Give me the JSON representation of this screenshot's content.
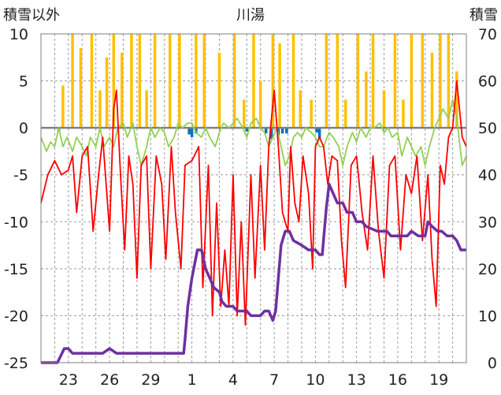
{
  "chart_data": {
    "type": "line",
    "title": "川湯",
    "left_axis_label": "積雪以外",
    "right_axis_label": "積雪",
    "left_ylim": [
      -25,
      10
    ],
    "left_yticks": [
      10,
      5,
      0,
      -5,
      -10,
      -15,
      -20,
      -25
    ],
    "right_ylim": [
      0,
      70
    ],
    "right_yticks": [
      70,
      60,
      50,
      40,
      30,
      20,
      10,
      0
    ],
    "x_range": [
      21,
      52
    ],
    "x_ticks": [
      {
        "x": 23,
        "label": "23"
      },
      {
        "x": 26,
        "label": "26"
      },
      {
        "x": 29,
        "label": "29"
      },
      {
        "x": 32,
        "label": "1"
      },
      {
        "x": 35,
        "label": "4"
      },
      {
        "x": 38,
        "label": "7"
      },
      {
        "x": 41,
        "label": "10"
      },
      {
        "x": 44,
        "label": "13"
      },
      {
        "x": 47,
        "label": "16"
      },
      {
        "x": 50,
        "label": "19"
      }
    ],
    "grid": "dashed-vertical-and-horizontal",
    "colors": {
      "precipitation": "#ffc000",
      "snowfall": "#0070c0",
      "temperature": "#ff0000",
      "sunshine": "#92d050",
      "snow_depth": "#7030a0",
      "zero_line": "#808080"
    },
    "series": [
      {
        "name": "precipitation",
        "kind": "bar-up-from-zero-left-axis",
        "values": [
          [
            22.6,
            4.5
          ],
          [
            23.3,
            10
          ],
          [
            23.9,
            8.5
          ],
          [
            24.7,
            10
          ],
          [
            25.3,
            4
          ],
          [
            25.8,
            7.5
          ],
          [
            26.3,
            10
          ],
          [
            26.9,
            8
          ],
          [
            27.6,
            10
          ],
          [
            28.2,
            10
          ],
          [
            28.7,
            4
          ],
          [
            29.3,
            10
          ],
          [
            30.4,
            10
          ],
          [
            31.1,
            10
          ],
          [
            32.3,
            10
          ],
          [
            32.9,
            10
          ],
          [
            34.0,
            8
          ],
          [
            35.1,
            10
          ],
          [
            35.8,
            3
          ],
          [
            36.5,
            10
          ],
          [
            37.0,
            5
          ],
          [
            37.9,
            10
          ],
          [
            38.4,
            9
          ],
          [
            39.4,
            10
          ],
          [
            39.9,
            4
          ],
          [
            40.7,
            3
          ],
          [
            41.8,
            10
          ],
          [
            42.6,
            10
          ],
          [
            43.2,
            3
          ],
          [
            44.1,
            10
          ],
          [
            44.7,
            6
          ],
          [
            45.2,
            10
          ],
          [
            46.0,
            4
          ],
          [
            46.8,
            10
          ],
          [
            47.4,
            3
          ],
          [
            48.0,
            10
          ],
          [
            48.8,
            10
          ],
          [
            49.5,
            8
          ],
          [
            50.1,
            10
          ],
          [
            50.7,
            10
          ],
          [
            51.3,
            6
          ]
        ]
      },
      {
        "name": "snowfall",
        "kind": "bar-down-from-zero-left-axis",
        "values": [
          [
            22.3,
            -0.4
          ],
          [
            31.8,
            -0.7
          ],
          [
            32.0,
            -1
          ],
          [
            32.3,
            -0.6
          ],
          [
            36.0,
            -0.4
          ],
          [
            37.4,
            -0.6
          ],
          [
            37.8,
            -1.2
          ],
          [
            38.3,
            -0.8
          ],
          [
            38.6,
            -0.6
          ],
          [
            38.9,
            -0.6
          ],
          [
            41.1,
            -0.5
          ],
          [
            41.3,
            -1.2
          ]
        ]
      },
      {
        "name": "temperature",
        "kind": "line-left-axis",
        "values": [
          [
            21.0,
            -8
          ],
          [
            21.5,
            -5
          ],
          [
            22.0,
            -3.5
          ],
          [
            22.5,
            -5
          ],
          [
            23.0,
            -4.5
          ],
          [
            23.3,
            -3
          ],
          [
            23.6,
            -9
          ],
          [
            24.0,
            -3
          ],
          [
            24.4,
            -2
          ],
          [
            24.8,
            -11
          ],
          [
            25.2,
            -5
          ],
          [
            25.5,
            -1
          ],
          [
            25.8,
            -7
          ],
          [
            26.0,
            -11
          ],
          [
            26.3,
            2
          ],
          [
            26.5,
            4
          ],
          [
            26.8,
            -5
          ],
          [
            27.1,
            -13
          ],
          [
            27.4,
            -3
          ],
          [
            27.7,
            -6
          ],
          [
            28.0,
            -16
          ],
          [
            28.3,
            -4
          ],
          [
            28.7,
            -3
          ],
          [
            29.0,
            -15
          ],
          [
            29.4,
            -3
          ],
          [
            29.8,
            -6
          ],
          [
            30.1,
            -14
          ],
          [
            30.5,
            -2
          ],
          [
            30.8,
            -9
          ],
          [
            31.2,
            -15
          ],
          [
            31.5,
            -4
          ],
          [
            32.0,
            -3.5
          ],
          [
            32.5,
            -2
          ],
          [
            32.8,
            -17
          ],
          [
            33.2,
            -4
          ],
          [
            33.5,
            -20
          ],
          [
            33.8,
            -8
          ],
          [
            34.1,
            -19
          ],
          [
            34.4,
            -13
          ],
          [
            34.7,
            -19
          ],
          [
            35.0,
            -5
          ],
          [
            35.3,
            -20
          ],
          [
            35.6,
            -10
          ],
          [
            35.9,
            -21
          ],
          [
            36.3,
            -5
          ],
          [
            36.6,
            -16
          ],
          [
            37.0,
            -4
          ],
          [
            37.3,
            -13
          ],
          [
            37.6,
            -2
          ],
          [
            38.0,
            4
          ],
          [
            38.3,
            -2
          ],
          [
            38.6,
            -9
          ],
          [
            39.0,
            -11
          ],
          [
            39.2,
            -2
          ],
          [
            39.5,
            -8
          ],
          [
            39.8,
            -10
          ],
          [
            40.1,
            -3
          ],
          [
            40.5,
            -7
          ],
          [
            40.8,
            -15
          ],
          [
            41.0,
            -2
          ],
          [
            41.3,
            -1
          ],
          [
            41.6,
            -2
          ],
          [
            41.9,
            -6
          ],
          [
            42.2,
            -3
          ],
          [
            42.6,
            -3.5
          ],
          [
            42.9,
            -12
          ],
          [
            43.2,
            -17
          ],
          [
            43.6,
            -4
          ],
          [
            44.0,
            -3
          ],
          [
            44.4,
            -9
          ],
          [
            44.8,
            -13
          ],
          [
            45.2,
            -3
          ],
          [
            45.6,
            -11
          ],
          [
            46.0,
            -16
          ],
          [
            46.4,
            -4
          ],
          [
            46.8,
            -3
          ],
          [
            47.2,
            -13
          ],
          [
            47.6,
            -5
          ],
          [
            48.0,
            -7
          ],
          [
            48.4,
            -3
          ],
          [
            48.8,
            -12
          ],
          [
            49.2,
            -5
          ],
          [
            49.5,
            -14
          ],
          [
            49.8,
            -19
          ],
          [
            50.1,
            -4
          ],
          [
            50.4,
            -6
          ],
          [
            50.7,
            -1
          ],
          [
            51.0,
            0
          ],
          [
            51.3,
            5
          ],
          [
            51.7,
            -1
          ],
          [
            52.0,
            -2
          ]
        ]
      },
      {
        "name": "sunshine",
        "kind": "line-left-axis",
        "values": [
          [
            21.0,
            -1
          ],
          [
            21.4,
            -2.5
          ],
          [
            21.7,
            -1.5
          ],
          [
            22.0,
            -2
          ],
          [
            22.3,
            0
          ],
          [
            22.6,
            -2
          ],
          [
            22.9,
            -1
          ],
          [
            23.3,
            -2.5
          ],
          [
            23.6,
            -1
          ],
          [
            24.0,
            -2
          ],
          [
            24.3,
            -3
          ],
          [
            24.6,
            -1
          ],
          [
            25.0,
            -2
          ],
          [
            25.3,
            0
          ],
          [
            25.6,
            -2
          ],
          [
            26.0,
            -1
          ],
          [
            26.3,
            -2
          ],
          [
            26.6,
            0
          ],
          [
            27.0,
            0.5
          ],
          [
            27.3,
            -1
          ],
          [
            27.7,
            0.5
          ],
          [
            28.0,
            -2
          ],
          [
            28.3,
            -4
          ],
          [
            28.7,
            -2
          ],
          [
            29.0,
            0
          ],
          [
            29.3,
            -1
          ],
          [
            29.7,
            0
          ],
          [
            30.0,
            -0.5
          ],
          [
            30.3,
            -2
          ],
          [
            30.7,
            -1
          ],
          [
            31.0,
            0.5
          ],
          [
            31.3,
            0
          ],
          [
            31.7,
            0.5
          ],
          [
            32.0,
            0.5
          ],
          [
            32.3,
            -0.5
          ],
          [
            32.7,
            -1
          ],
          [
            33.0,
            0
          ],
          [
            33.3,
            -1
          ],
          [
            33.7,
            -2
          ],
          [
            34.0,
            -0.5
          ],
          [
            34.3,
            0.5
          ],
          [
            34.7,
            0
          ],
          [
            35.0,
            0.5
          ],
          [
            35.3,
            1
          ],
          [
            35.7,
            0
          ],
          [
            36.0,
            -1
          ],
          [
            36.3,
            0.5
          ],
          [
            36.7,
            1
          ],
          [
            37.0,
            0
          ],
          [
            37.3,
            -0.5
          ],
          [
            37.6,
            -2
          ],
          [
            37.9,
            -1
          ],
          [
            38.2,
            0
          ],
          [
            38.5,
            -2
          ],
          [
            38.8,
            -4
          ],
          [
            39.1,
            -3
          ],
          [
            39.4,
            -1
          ],
          [
            39.7,
            -0.5
          ],
          [
            40.0,
            -1
          ],
          [
            40.3,
            0
          ],
          [
            40.7,
            -0.5
          ],
          [
            41.0,
            -1
          ],
          [
            41.3,
            -2
          ],
          [
            41.6,
            -2
          ],
          [
            42.0,
            -0.5
          ],
          [
            42.3,
            -1
          ],
          [
            42.7,
            -2
          ],
          [
            43.0,
            -4
          ],
          [
            43.3,
            -2
          ],
          [
            43.7,
            -0.5
          ],
          [
            44.0,
            -1.5
          ],
          [
            44.3,
            0
          ],
          [
            44.7,
            -1
          ],
          [
            45.0,
            0
          ],
          [
            45.3,
            0
          ],
          [
            45.7,
            0.5
          ],
          [
            46.0,
            -0.5
          ],
          [
            46.3,
            0
          ],
          [
            46.6,
            -1
          ],
          [
            47.0,
            -0.5
          ],
          [
            47.3,
            -3
          ],
          [
            47.7,
            -1
          ],
          [
            48.0,
            -2
          ],
          [
            48.3,
            -3
          ],
          [
            48.7,
            -2
          ],
          [
            49.0,
            -4
          ],
          [
            49.3,
            -2
          ],
          [
            49.7,
            0
          ],
          [
            50.0,
            1
          ],
          [
            50.3,
            2
          ],
          [
            50.7,
            1
          ],
          [
            51.0,
            3
          ],
          [
            51.3,
            1
          ],
          [
            51.7,
            -4
          ],
          [
            52.0,
            -3
          ]
        ]
      },
      {
        "name": "snow_depth",
        "kind": "line-right-axis",
        "values": [
          [
            21.0,
            0
          ],
          [
            22.2,
            0
          ],
          [
            22.7,
            3
          ],
          [
            23.0,
            3
          ],
          [
            23.3,
            2
          ],
          [
            24.5,
            2
          ],
          [
            25.5,
            2
          ],
          [
            26.0,
            3
          ],
          [
            26.5,
            2
          ],
          [
            30.0,
            2
          ],
          [
            31.4,
            2
          ],
          [
            31.5,
            5
          ],
          [
            31.7,
            12
          ],
          [
            32.0,
            18
          ],
          [
            32.4,
            24
          ],
          [
            32.7,
            24
          ],
          [
            33.0,
            20
          ],
          [
            33.3,
            18
          ],
          [
            33.6,
            16
          ],
          [
            34.0,
            15
          ],
          [
            34.2,
            13
          ],
          [
            34.5,
            12
          ],
          [
            35.0,
            12
          ],
          [
            35.3,
            11
          ],
          [
            36.0,
            11
          ],
          [
            36.3,
            10
          ],
          [
            37.0,
            10
          ],
          [
            37.3,
            11
          ],
          [
            37.6,
            11
          ],
          [
            37.9,
            9
          ],
          [
            38.1,
            11
          ],
          [
            38.5,
            25
          ],
          [
            38.8,
            28
          ],
          [
            39.1,
            28
          ],
          [
            39.4,
            26
          ],
          [
            40.0,
            25
          ],
          [
            40.5,
            24
          ],
          [
            41.0,
            24
          ],
          [
            41.3,
            23
          ],
          [
            41.5,
            23
          ],
          [
            41.8,
            33
          ],
          [
            42.0,
            38
          ],
          [
            42.3,
            36
          ],
          [
            42.6,
            34
          ],
          [
            43.0,
            34
          ],
          [
            43.3,
            32
          ],
          [
            43.7,
            32
          ],
          [
            44.0,
            30
          ],
          [
            44.4,
            30
          ],
          [
            44.7,
            29
          ],
          [
            45.5,
            28
          ],
          [
            46.2,
            28
          ],
          [
            46.5,
            27
          ],
          [
            47.3,
            27
          ],
          [
            47.7,
            27
          ],
          [
            48.0,
            28
          ],
          [
            48.5,
            27
          ],
          [
            49.0,
            27
          ],
          [
            49.2,
            30
          ],
          [
            49.5,
            29
          ],
          [
            49.9,
            28
          ],
          [
            50.2,
            28
          ],
          [
            50.6,
            27
          ],
          [
            51.0,
            27
          ],
          [
            51.3,
            26
          ],
          [
            51.6,
            24
          ],
          [
            52.0,
            24
          ]
        ]
      }
    ]
  }
}
